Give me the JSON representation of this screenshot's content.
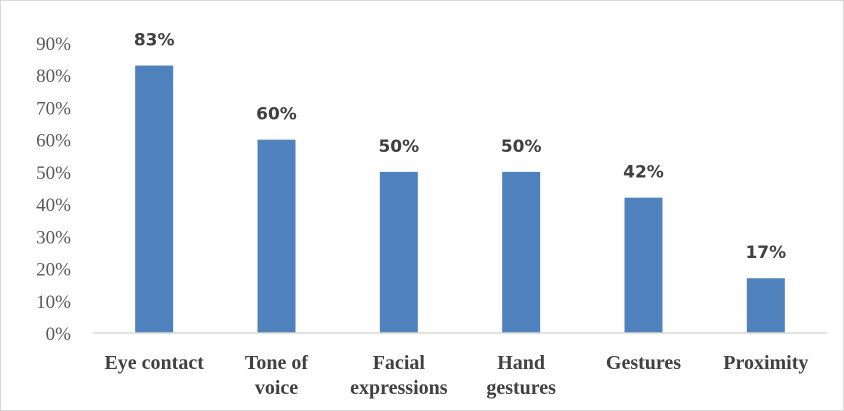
{
  "chart_data": {
    "type": "bar",
    "categories": [
      [
        "Eye contact"
      ],
      [
        "Tone of",
        "voice"
      ],
      [
        "Facial",
        "expressions"
      ],
      [
        "Hand",
        "gestures"
      ],
      [
        "Gestures"
      ],
      [
        "Proximity"
      ]
    ],
    "values": [
      83,
      60,
      50,
      50,
      42,
      17
    ],
    "data_labels": [
      "83%",
      "60%",
      "50%",
      "50%",
      "42%",
      "17%"
    ],
    "ylim": [
      0,
      90
    ],
    "yticks": [
      0,
      10,
      20,
      30,
      40,
      50,
      60,
      70,
      80,
      90
    ],
    "ytick_labels": [
      "0%",
      "10%",
      "20%",
      "30%",
      "40%",
      "50%",
      "60%",
      "70%",
      "80%",
      "90%"
    ],
    "title": "",
    "xlabel": "",
    "ylabel": "",
    "grid": false,
    "legend": "none",
    "bar_color": "#4f81bd",
    "axis_color": "#d9d9d9"
  }
}
